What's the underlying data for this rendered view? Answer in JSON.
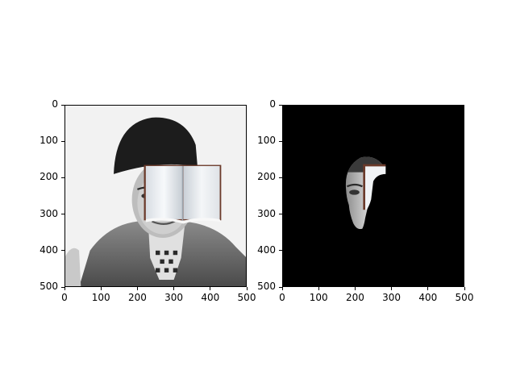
{
  "figure": {
    "background": "#ffffff",
    "panels": [
      {
        "id": "left",
        "description_icons": [
          "portrait-photo",
          "open-book-overlay"
        ],
        "x_ticks": [
          "0",
          "100",
          "200",
          "300",
          "400",
          "500"
        ],
        "y_ticks": [
          "0",
          "100",
          "200",
          "300",
          "400",
          "500"
        ]
      },
      {
        "id": "right",
        "description_icons": [
          "masked-face-region",
          "book-edge-overlay"
        ],
        "x_ticks": [
          "0",
          "100",
          "200",
          "300",
          "400",
          "500"
        ],
        "y_ticks": [
          "0",
          "100",
          "200",
          "300",
          "400",
          "500"
        ]
      }
    ],
    "colors": {
      "mask_background": "#000000",
      "book_border": "#6b3a2a",
      "hat": "#1c1c1c",
      "coat": "#5a5a5a"
    }
  }
}
